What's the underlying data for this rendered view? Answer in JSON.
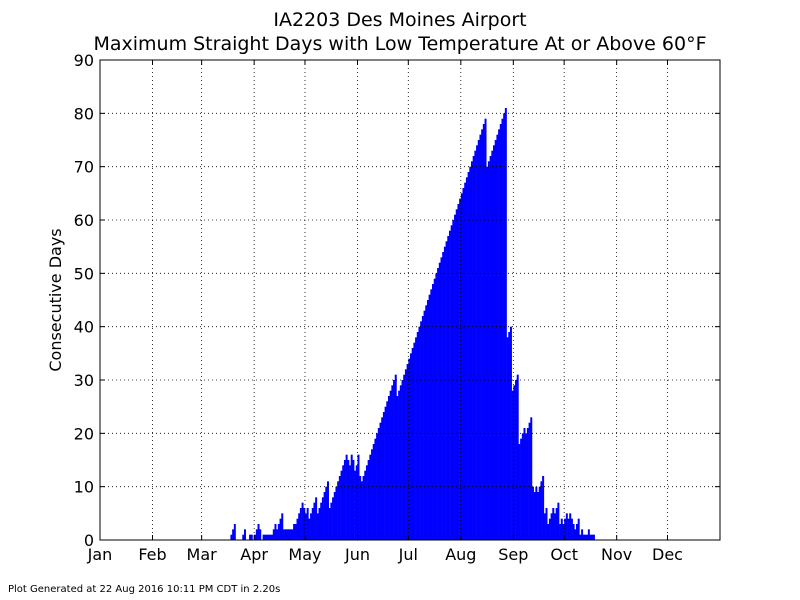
{
  "footer": "Plot Generated at 22 Aug 2016 10:11 PM CDT in 2.20s",
  "chart_data": {
    "type": "bar",
    "title": "IA2203 Des Moines Airport",
    "subtitle": "Maximum Straight Days with Low Temperature At or Above 60°F",
    "xlabel": "",
    "ylabel": "Consecutive Days",
    "ylim": [
      0,
      90
    ],
    "yticks": [
      0,
      10,
      20,
      30,
      40,
      50,
      60,
      70,
      80,
      90
    ],
    "xlim_day_of_year": [
      1,
      367
    ],
    "xtick_labels": [
      "Jan",
      "Feb",
      "Mar",
      "Apr",
      "May",
      "Jun",
      "Jul",
      "Aug",
      "Sep",
      "Oct",
      "Nov",
      "Dec"
    ],
    "xtick_day_of_year": [
      1,
      32,
      61,
      92,
      122,
      153,
      183,
      214,
      245,
      275,
      306,
      336
    ],
    "grid": true,
    "bar_color": "#0000ff",
    "series": [
      {
        "points": [
          [
            78,
            1
          ],
          [
            79,
            2
          ],
          [
            80,
            3
          ],
          [
            85,
            1
          ],
          [
            86,
            2
          ],
          [
            89,
            1
          ],
          [
            90,
            1
          ],
          [
            92,
            1
          ],
          [
            93,
            2
          ],
          [
            94,
            3
          ],
          [
            95,
            2
          ],
          [
            97,
            1
          ],
          [
            98,
            1
          ],
          [
            99,
            1
          ],
          [
            100,
            1
          ],
          [
            101,
            1
          ],
          [
            102,
            1
          ],
          [
            103,
            2
          ],
          [
            104,
            3
          ],
          [
            105,
            2
          ],
          [
            106,
            3
          ],
          [
            107,
            4
          ],
          [
            108,
            5
          ],
          [
            109,
            2
          ],
          [
            110,
            2
          ],
          [
            111,
            2
          ],
          [
            112,
            2
          ],
          [
            113,
            2
          ],
          [
            114,
            2
          ],
          [
            115,
            3
          ],
          [
            116,
            3
          ],
          [
            117,
            4
          ],
          [
            118,
            5
          ],
          [
            119,
            6
          ],
          [
            120,
            7
          ],
          [
            121,
            6
          ],
          [
            122,
            5
          ],
          [
            123,
            6
          ],
          [
            124,
            4
          ],
          [
            125,
            5
          ],
          [
            126,
            6
          ],
          [
            127,
            7
          ],
          [
            128,
            8
          ],
          [
            129,
            5
          ],
          [
            130,
            6
          ],
          [
            131,
            7
          ],
          [
            132,
            8
          ],
          [
            133,
            9
          ],
          [
            134,
            10
          ],
          [
            135,
            11
          ],
          [
            136,
            6
          ],
          [
            137,
            7
          ],
          [
            138,
            8
          ],
          [
            139,
            9
          ],
          [
            140,
            10
          ],
          [
            141,
            11
          ],
          [
            142,
            12
          ],
          [
            143,
            13
          ],
          [
            144,
            14
          ],
          [
            145,
            15
          ],
          [
            146,
            16
          ],
          [
            147,
            15
          ],
          [
            148,
            14
          ],
          [
            149,
            16
          ],
          [
            150,
            15
          ],
          [
            151,
            13
          ],
          [
            152,
            14
          ],
          [
            153,
            16
          ],
          [
            154,
            12
          ],
          [
            155,
            11
          ],
          [
            156,
            12
          ],
          [
            157,
            13
          ],
          [
            158,
            14
          ],
          [
            159,
            15
          ],
          [
            160,
            16
          ],
          [
            161,
            17
          ],
          [
            162,
            18
          ],
          [
            163,
            19
          ],
          [
            164,
            20
          ],
          [
            165,
            21
          ],
          [
            166,
            22
          ],
          [
            167,
            23
          ],
          [
            168,
            24
          ],
          [
            169,
            25
          ],
          [
            170,
            26
          ],
          [
            171,
            27
          ],
          [
            172,
            28
          ],
          [
            173,
            29
          ],
          [
            174,
            30
          ],
          [
            175,
            31
          ],
          [
            176,
            27
          ],
          [
            177,
            28
          ],
          [
            178,
            29
          ],
          [
            179,
            30
          ],
          [
            180,
            31
          ],
          [
            181,
            32
          ],
          [
            182,
            33
          ],
          [
            183,
            34
          ],
          [
            184,
            35
          ],
          [
            185,
            36
          ],
          [
            186,
            37
          ],
          [
            187,
            38
          ],
          [
            188,
            39
          ],
          [
            189,
            40
          ],
          [
            190,
            41
          ],
          [
            191,
            42
          ],
          [
            192,
            43
          ],
          [
            193,
            44
          ],
          [
            194,
            45
          ],
          [
            195,
            46
          ],
          [
            196,
            47
          ],
          [
            197,
            48
          ],
          [
            198,
            49
          ],
          [
            199,
            50
          ],
          [
            200,
            51
          ],
          [
            201,
            52
          ],
          [
            202,
            53
          ],
          [
            203,
            54
          ],
          [
            204,
            55
          ],
          [
            205,
            56
          ],
          [
            206,
            57
          ],
          [
            207,
            58
          ],
          [
            208,
            59
          ],
          [
            209,
            60
          ],
          [
            210,
            61
          ],
          [
            211,
            62
          ],
          [
            212,
            63
          ],
          [
            213,
            64
          ],
          [
            214,
            65
          ],
          [
            215,
            66
          ],
          [
            216,
            67
          ],
          [
            217,
            68
          ],
          [
            218,
            69
          ],
          [
            219,
            70
          ],
          [
            220,
            71
          ],
          [
            221,
            72
          ],
          [
            222,
            73
          ],
          [
            223,
            74
          ],
          [
            224,
            75
          ],
          [
            225,
            76
          ],
          [
            226,
            77
          ],
          [
            227,
            78
          ],
          [
            228,
            79
          ],
          [
            229,
            70
          ],
          [
            230,
            71
          ],
          [
            231,
            72
          ],
          [
            232,
            73
          ],
          [
            233,
            74
          ],
          [
            234,
            75
          ],
          [
            235,
            76
          ],
          [
            236,
            77
          ],
          [
            237,
            78
          ],
          [
            238,
            79
          ],
          [
            239,
            80
          ],
          [
            240,
            81
          ],
          [
            241,
            38
          ],
          [
            242,
            39
          ],
          [
            243,
            40
          ],
          [
            244,
            28
          ],
          [
            245,
            29
          ],
          [
            246,
            30
          ],
          [
            247,
            31
          ],
          [
            248,
            18
          ],
          [
            249,
            19
          ],
          [
            250,
            20
          ],
          [
            251,
            21
          ],
          [
            252,
            20
          ],
          [
            253,
            21
          ],
          [
            254,
            22
          ],
          [
            255,
            23
          ],
          [
            256,
            10
          ],
          [
            257,
            9
          ],
          [
            258,
            10
          ],
          [
            259,
            9
          ],
          [
            260,
            10
          ],
          [
            261,
            11
          ],
          [
            262,
            12
          ],
          [
            263,
            5
          ],
          [
            264,
            6
          ],
          [
            265,
            3
          ],
          [
            266,
            4
          ],
          [
            267,
            5
          ],
          [
            268,
            6
          ],
          [
            269,
            5
          ],
          [
            270,
            6
          ],
          [
            271,
            7
          ],
          [
            272,
            3
          ],
          [
            273,
            4
          ],
          [
            274,
            3
          ],
          [
            275,
            4
          ],
          [
            276,
            5
          ],
          [
            277,
            4
          ],
          [
            278,
            5
          ],
          [
            279,
            4
          ],
          [
            280,
            3
          ],
          [
            281,
            2
          ],
          [
            282,
            3
          ],
          [
            283,
            4
          ],
          [
            284,
            1
          ],
          [
            285,
            2
          ],
          [
            286,
            1
          ],
          [
            287,
            1
          ],
          [
            288,
            1
          ],
          [
            289,
            2
          ],
          [
            290,
            1
          ],
          [
            291,
            1
          ],
          [
            292,
            1
          ]
        ]
      }
    ]
  }
}
